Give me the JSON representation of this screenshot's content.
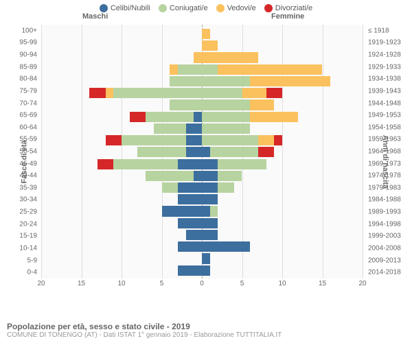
{
  "legend": [
    {
      "label": "Celibi/Nubili",
      "color": "#3c6e9e"
    },
    {
      "label": "Coniugati/e",
      "color": "#b7d3a0"
    },
    {
      "label": "Vedovi/e",
      "color": "#fbc15e"
    },
    {
      "label": "Divorziati/e",
      "color": "#d62728"
    }
  ],
  "gender": {
    "male": "Maschi",
    "female": "Femmine"
  },
  "axis_titles": {
    "left": "Fasce di età",
    "right": "Anni di nascita"
  },
  "x_ticks": [
    20,
    15,
    10,
    5,
    0,
    5,
    10,
    15,
    20
  ],
  "pyramid": {
    "type": "population-pyramid",
    "x_max": 20,
    "background_color": "#fafafa",
    "grid_color": "#dddddd",
    "centerline_color": "#aaaaaa",
    "bar_vpad_pct": 6,
    "rows": [
      {
        "age": "100+",
        "birth": "≤ 1918",
        "m": [
          0,
          0,
          0,
          0
        ],
        "f": [
          0,
          0,
          1,
          0
        ]
      },
      {
        "age": "95-99",
        "birth": "1919-1923",
        "m": [
          0,
          0,
          0,
          0
        ],
        "f": [
          0,
          0,
          2,
          0
        ]
      },
      {
        "age": "90-94",
        "birth": "1924-1928",
        "m": [
          0,
          0,
          1,
          0
        ],
        "f": [
          0,
          0,
          7,
          0
        ]
      },
      {
        "age": "85-89",
        "birth": "1929-1933",
        "m": [
          0,
          3,
          1,
          0
        ],
        "f": [
          0,
          2,
          13,
          0
        ]
      },
      {
        "age": "80-84",
        "birth": "1934-1938",
        "m": [
          0,
          4,
          0,
          0
        ],
        "f": [
          0,
          6,
          10,
          0
        ]
      },
      {
        "age": "75-79",
        "birth": "1939-1943",
        "m": [
          0,
          11,
          1,
          2
        ],
        "f": [
          0,
          5,
          3,
          2
        ]
      },
      {
        "age": "70-74",
        "birth": "1944-1948",
        "m": [
          0,
          4,
          0,
          0
        ],
        "f": [
          0,
          6,
          3,
          0
        ]
      },
      {
        "age": "65-69",
        "birth": "1949-1953",
        "m": [
          1,
          6,
          0,
          2
        ],
        "f": [
          0,
          6,
          6,
          0
        ]
      },
      {
        "age": "60-64",
        "birth": "1954-1958",
        "m": [
          2,
          4,
          0,
          0
        ],
        "f": [
          0,
          6,
          0,
          0
        ]
      },
      {
        "age": "55-59",
        "birth": "1959-1963",
        "m": [
          2,
          8,
          0,
          2
        ],
        "f": [
          0,
          7,
          2,
          1
        ]
      },
      {
        "age": "50-54",
        "birth": "1964-1968",
        "m": [
          2,
          6,
          0,
          0
        ],
        "f": [
          1,
          6,
          0,
          2
        ]
      },
      {
        "age": "45-49",
        "birth": "1969-1973",
        "m": [
          3,
          8,
          0,
          2
        ],
        "f": [
          2,
          6,
          0,
          0
        ]
      },
      {
        "age": "40-44",
        "birth": "1974-1978",
        "m": [
          1,
          6,
          0,
          0
        ],
        "f": [
          2,
          3,
          0,
          0
        ]
      },
      {
        "age": "35-39",
        "birth": "1979-1983",
        "m": [
          3,
          2,
          0,
          0
        ],
        "f": [
          2,
          2,
          0,
          0
        ]
      },
      {
        "age": "30-34",
        "birth": "1984-1988",
        "m": [
          3,
          0,
          0,
          0
        ],
        "f": [
          2,
          0,
          0,
          0
        ]
      },
      {
        "age": "25-29",
        "birth": "1989-1993",
        "m": [
          5,
          0,
          0,
          0
        ],
        "f": [
          1,
          1,
          0,
          0
        ]
      },
      {
        "age": "20-24",
        "birth": "1994-1998",
        "m": [
          3,
          0,
          0,
          0
        ],
        "f": [
          2,
          0,
          0,
          0
        ]
      },
      {
        "age": "15-19",
        "birth": "1999-2003",
        "m": [
          2,
          0,
          0,
          0
        ],
        "f": [
          2,
          0,
          0,
          0
        ]
      },
      {
        "age": "10-14",
        "birth": "2004-2008",
        "m": [
          3,
          0,
          0,
          0
        ],
        "f": [
          6,
          0,
          0,
          0
        ]
      },
      {
        "age": "5-9",
        "birth": "2009-2013",
        "m": [
          0,
          0,
          0,
          0
        ],
        "f": [
          1,
          0,
          0,
          0
        ]
      },
      {
        "age": "0-4",
        "birth": "2014-2018",
        "m": [
          3,
          0,
          0,
          0
        ],
        "f": [
          1,
          0,
          0,
          0
        ]
      }
    ]
  },
  "footer": {
    "title": "Popolazione per età, sesso e stato civile - 2019",
    "subtitle": "COMUNE DI TONENGO (AT) - Dati ISTAT 1° gennaio 2019 - Elaborazione TUTTITALIA.IT"
  }
}
